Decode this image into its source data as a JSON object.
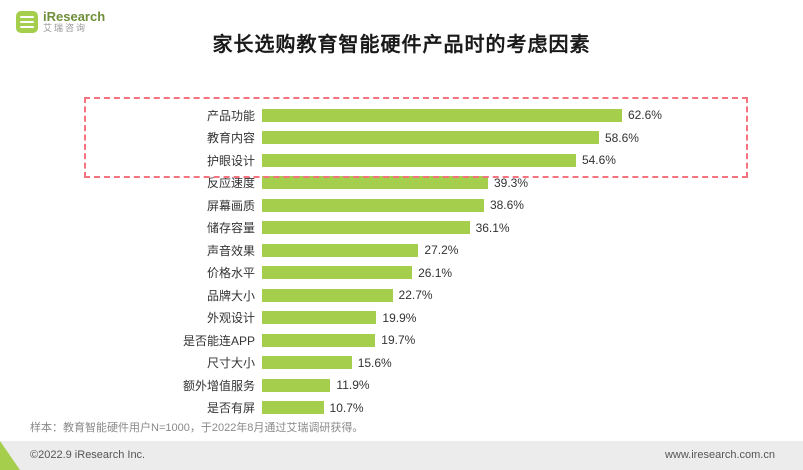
{
  "logo": {
    "brand": "iResearch",
    "sub": "艾瑞咨询"
  },
  "footer": {
    "note": "样本：教育智能硬件用户N=1000，于2022年8月通过艾瑞调研获得。",
    "copyright": "©2022.9 iResearch Inc.",
    "website": "www.iresearch.com.cn"
  },
  "colors": {
    "bar": "#a5ce4d",
    "highlight": "#f4737f",
    "strip_bg": "#ececec",
    "text_dark": "#1a1a1a"
  },
  "chart_data": {
    "type": "bar",
    "orientation": "horizontal",
    "title": "家长选购教育智能硬件产品时的考虑因素",
    "categories": [
      "产品功能",
      "教育内容",
      "护眼设计",
      "反应速度",
      "屏幕画质",
      "储存容量",
      "声音效果",
      "价格水平",
      "品牌大小",
      "外观设计",
      "是否能连APP",
      "尺寸大小",
      "额外增值服务",
      "是否有屏"
    ],
    "values": [
      62.6,
      58.6,
      54.6,
      39.3,
      38.6,
      36.1,
      27.2,
      26.1,
      22.7,
      19.9,
      19.7,
      15.6,
      11.9,
      10.7
    ],
    "value_suffix": "%",
    "xlim": [
      0,
      70
    ],
    "grid": false,
    "legend": false,
    "highlighted_categories": [
      "产品功能",
      "教育内容",
      "护眼设计"
    ],
    "highlight_style": "red-dashed-box"
  }
}
